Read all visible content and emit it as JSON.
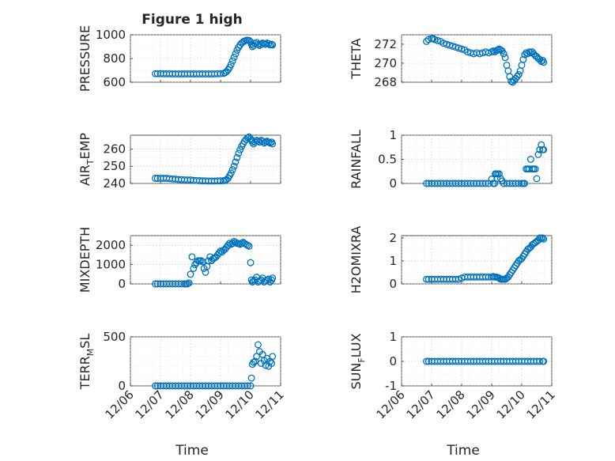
{
  "figure": {
    "title": "Figure 1 high",
    "xlabel": "Time",
    "x_ticks": [
      "12/06",
      "12/07",
      "12/08",
      "12/09",
      "12/10",
      "12/11"
    ],
    "x_tick_values": [
      6,
      7,
      8,
      9,
      10,
      11
    ],
    "x_range": [
      6,
      11
    ]
  },
  "chart_data": [
    {
      "type": "scatter",
      "ylabel": "PRESSURE",
      "ylim": [
        600,
        1000
      ],
      "yticks": [
        "600",
        "800",
        "1000"
      ],
      "ytick_values": [
        600,
        800,
        1000
      ],
      "ygrid_minor": [
        700,
        900
      ],
      "x": [
        6.83,
        6.9,
        7.0,
        7.1,
        7.2,
        7.3,
        7.4,
        7.5,
        7.6,
        7.7,
        7.8,
        7.9,
        8.0,
        8.1,
        8.2,
        8.3,
        8.4,
        8.5,
        8.6,
        8.7,
        8.8,
        8.9,
        9.0,
        9.1,
        9.15,
        9.2,
        9.25,
        9.3,
        9.35,
        9.4,
        9.45,
        9.5,
        9.55,
        9.6,
        9.65,
        9.7,
        9.75,
        9.8,
        9.85,
        9.9,
        9.95,
        10.0,
        10.03,
        10.06,
        10.1,
        10.15,
        10.2,
        10.25,
        10.3,
        10.35,
        10.4,
        10.45,
        10.5,
        10.55,
        10.6,
        10.65,
        10.7,
        10.73
      ],
      "y": [
        672,
        672,
        672,
        671,
        671,
        671,
        670,
        670,
        670,
        670,
        670,
        670,
        670,
        670,
        670,
        670,
        670,
        670,
        670,
        670,
        670,
        671,
        672,
        674,
        680,
        690,
        705,
        725,
        750,
        780,
        810,
        840,
        870,
        895,
        915,
        930,
        940,
        948,
        953,
        955,
        952,
        940,
        920,
        900,
        910,
        925,
        935,
        920,
        910,
        920,
        930,
        925,
        920,
        930,
        925,
        915,
        920,
        915
      ]
    },
    {
      "type": "scatter",
      "ylabel": "THETA",
      "ylim": [
        268,
        273
      ],
      "yticks": [
        "268",
        "270",
        "272"
      ],
      "ytick_values": [
        268,
        270,
        272
      ],
      "ygrid_minor": [
        269,
        271,
        273
      ],
      "x": [
        6.83,
        6.9,
        7.0,
        7.05,
        7.1,
        7.2,
        7.3,
        7.4,
        7.5,
        7.6,
        7.7,
        7.8,
        7.9,
        8.0,
        8.1,
        8.2,
        8.3,
        8.4,
        8.5,
        8.6,
        8.7,
        8.8,
        8.9,
        9.0,
        9.05,
        9.1,
        9.15,
        9.2,
        9.25,
        9.3,
        9.35,
        9.4,
        9.45,
        9.5,
        9.55,
        9.6,
        9.65,
        9.7,
        9.75,
        9.8,
        9.85,
        9.9,
        9.95,
        10.0,
        10.05,
        10.1,
        10.15,
        10.2,
        10.25,
        10.3,
        10.35,
        10.4,
        10.45,
        10.5,
        10.55,
        10.6,
        10.65,
        10.7,
        10.73
      ],
      "y": [
        272.3,
        272.5,
        272.6,
        272.6,
        272.5,
        272.4,
        272.3,
        272.1,
        272.0,
        271.9,
        271.8,
        271.7,
        271.6,
        271.5,
        271.4,
        271.2,
        271.1,
        271.0,
        271.1,
        271.0,
        271.1,
        271.2,
        271.1,
        271.2,
        271.3,
        271.2,
        271.3,
        271.4,
        271.5,
        271.4,
        271.3,
        271.0,
        270.6,
        269.8,
        269.2,
        268.6,
        268.1,
        268.0,
        268.2,
        268.4,
        268.6,
        268.8,
        269.2,
        269.8,
        270.4,
        270.9,
        271.1,
        271.0,
        271.2,
        271.1,
        271.2,
        271.0,
        270.8,
        270.7,
        270.5,
        270.4,
        270.2,
        270.3,
        270.1
      ]
    },
    {
      "type": "scatter",
      "ylabel": "AIR_TEMP",
      "ylim": [
        240,
        268
      ],
      "yticks": [
        "240",
        "250",
        "260"
      ],
      "ytick_values": [
        240,
        250,
        260
      ],
      "ygrid_minor": [
        245,
        255,
        265
      ],
      "x": [
        6.83,
        6.9,
        7.0,
        7.1,
        7.2,
        7.3,
        7.4,
        7.5,
        7.6,
        7.7,
        7.8,
        7.9,
        8.0,
        8.1,
        8.2,
        8.3,
        8.4,
        8.5,
        8.6,
        8.7,
        8.8,
        8.9,
        9.0,
        9.1,
        9.15,
        9.2,
        9.25,
        9.3,
        9.35,
        9.4,
        9.45,
        9.5,
        9.55,
        9.6,
        9.65,
        9.7,
        9.75,
        9.8,
        9.85,
        9.9,
        9.95,
        10.0,
        10.03,
        10.06,
        10.1,
        10.15,
        10.2,
        10.25,
        10.3,
        10.35,
        10.4,
        10.45,
        10.5,
        10.55,
        10.6,
        10.65,
        10.7,
        10.73
      ],
      "y": [
        243,
        243,
        243,
        243,
        243,
        242.8,
        242.6,
        242.5,
        242.3,
        242.2,
        242.1,
        242.0,
        242.0,
        241.8,
        241.7,
        241.6,
        241.5,
        241.5,
        241.4,
        241.4,
        241.4,
        241.5,
        241.5,
        241.6,
        241.8,
        242.2,
        243,
        244.5,
        246,
        248,
        250,
        252.5,
        255,
        257.5,
        259.5,
        261.5,
        263,
        264.5,
        265.5,
        266.5,
        267,
        266,
        265,
        264,
        263,
        264,
        265,
        264.5,
        264,
        265,
        264.5,
        263.5,
        264,
        264.5,
        264,
        263.5,
        264,
        263
      ]
    },
    {
      "type": "scatter",
      "ylabel": "RAINFALL",
      "ylim": [
        0,
        1
      ],
      "yticks": [
        "0",
        "0.5",
        "1"
      ],
      "ytick_values": [
        0,
        0.5,
        1
      ],
      "ygrid_minor": [
        0.25,
        0.75
      ],
      "x": [
        6.83,
        6.9,
        7.0,
        7.1,
        7.2,
        7.3,
        7.4,
        7.5,
        7.6,
        7.7,
        7.8,
        7.9,
        8.0,
        8.1,
        8.2,
        8.3,
        8.4,
        8.5,
        8.6,
        8.7,
        8.8,
        8.9,
        9.0,
        9.05,
        9.1,
        9.12,
        9.15,
        9.18,
        9.2,
        9.25,
        9.3,
        9.35,
        9.4,
        9.5,
        9.6,
        9.7,
        9.8,
        9.9,
        10.0,
        10.05,
        10.1,
        10.15,
        10.2,
        10.25,
        10.3,
        10.35,
        10.4,
        10.45,
        10.5,
        10.55,
        10.6,
        10.65,
        10.7,
        10.73
      ],
      "y": [
        0,
        0,
        0,
        0,
        0,
        0,
        0,
        0,
        0,
        0,
        0,
        0,
        0,
        0,
        0,
        0,
        0,
        0,
        0,
        0,
        0,
        0,
        0.09,
        0,
        0,
        0.2,
        0.2,
        0.1,
        0.2,
        0.2,
        0.1,
        0.05,
        0,
        0,
        0,
        0,
        0,
        0,
        0,
        0,
        0,
        0.3,
        0.3,
        0.3,
        0.5,
        0.3,
        0.3,
        0.3,
        0.1,
        0.6,
        0.7,
        0.8,
        0.7,
        0.7
      ]
    },
    {
      "type": "scatter",
      "ylabel": "MIXDEPTH",
      "ylim": [
        0,
        2500
      ],
      "yticks": [
        "0",
        "1000",
        "2000"
      ],
      "ytick_values": [
        0,
        1000,
        2000
      ],
      "ygrid_minor": [
        500,
        1500,
        2500
      ],
      "x": [
        6.83,
        6.9,
        7.0,
        7.1,
        7.2,
        7.3,
        7.4,
        7.5,
        7.6,
        7.7,
        7.8,
        7.85,
        7.9,
        7.95,
        8.0,
        8.05,
        8.1,
        8.15,
        8.2,
        8.25,
        8.3,
        8.35,
        8.4,
        8.45,
        8.5,
        8.55,
        8.6,
        8.65,
        8.7,
        8.75,
        8.8,
        8.85,
        8.9,
        8.95,
        9.0,
        9.05,
        9.1,
        9.15,
        9.2,
        9.25,
        9.3,
        9.35,
        9.4,
        9.45,
        9.5,
        9.55,
        9.6,
        9.65,
        9.7,
        9.75,
        9.8,
        9.85,
        9.9,
        9.95,
        10.0,
        10.03,
        10.06,
        10.1,
        10.15,
        10.2,
        10.25,
        10.3,
        10.35,
        10.4,
        10.45,
        10.5,
        10.55,
        10.6,
        10.65,
        10.7,
        10.73
      ],
      "y": [
        0,
        0,
        0,
        0,
        0,
        0,
        0,
        0,
        0,
        0,
        0,
        0,
        0,
        50,
        500,
        1400,
        800,
        1000,
        1100,
        1200,
        1200,
        1200,
        1150,
        800,
        600,
        900,
        1200,
        1400,
        1200,
        1300,
        1350,
        1400,
        1500,
        1600,
        1700,
        1650,
        1750,
        1800,
        1900,
        2000,
        2100,
        2050,
        2100,
        2200,
        2150,
        2100,
        2100,
        2050,
        2100,
        2150,
        2100,
        2050,
        2000,
        1950,
        1100,
        200,
        100,
        150,
        200,
        350,
        100,
        150,
        200,
        300,
        100,
        150,
        200,
        250,
        100,
        200,
        300
      ]
    },
    {
      "type": "scatter",
      "ylabel": "H2OMIXRA",
      "ylim": [
        0,
        2.1
      ],
      "yticks": [
        "0",
        "1",
        "2"
      ],
      "ytick_values": [
        0,
        1,
        2
      ],
      "ygrid_minor": [
        0.5,
        1.5
      ],
      "x": [
        6.83,
        6.9,
        7.0,
        7.1,
        7.2,
        7.3,
        7.4,
        7.5,
        7.6,
        7.7,
        7.8,
        7.9,
        8.0,
        8.1,
        8.2,
        8.3,
        8.4,
        8.5,
        8.6,
        8.7,
        8.8,
        8.9,
        9.0,
        9.05,
        9.1,
        9.15,
        9.2,
        9.25,
        9.3,
        9.35,
        9.4,
        9.45,
        9.5,
        9.55,
        9.6,
        9.65,
        9.7,
        9.75,
        9.8,
        9.85,
        9.9,
        9.95,
        10.0,
        10.05,
        10.1,
        10.15,
        10.2,
        10.25,
        10.3,
        10.35,
        10.4,
        10.45,
        10.5,
        10.55,
        10.6,
        10.65,
        10.7,
        10.73
      ],
      "y": [
        0.2,
        0.2,
        0.2,
        0.2,
        0.2,
        0.2,
        0.2,
        0.2,
        0.2,
        0.2,
        0.2,
        0.2,
        0.25,
        0.3,
        0.3,
        0.3,
        0.3,
        0.3,
        0.3,
        0.3,
        0.3,
        0.3,
        0.3,
        0.32,
        0.3,
        0.3,
        0.28,
        0.25,
        0.2,
        0.2,
        0.2,
        0.2,
        0.25,
        0.3,
        0.4,
        0.5,
        0.6,
        0.7,
        0.8,
        0.9,
        1.0,
        1.05,
        1.1,
        1.2,
        1.3,
        1.4,
        1.5,
        1.55,
        1.6,
        1.7,
        1.75,
        1.8,
        1.85,
        1.9,
        2.0,
        2.0,
        2.0,
        1.95
      ]
    },
    {
      "type": "scatter",
      "ylabel": "TERR_MSL",
      "ylim": [
        0,
        500
      ],
      "yticks": [
        "0",
        "500"
      ],
      "ytick_values": [
        0,
        500
      ],
      "ygrid_minor": [
        100,
        200,
        300,
        400
      ],
      "x": [
        6.83,
        6.9,
        7.0,
        7.1,
        7.2,
        7.3,
        7.4,
        7.5,
        7.6,
        7.7,
        7.8,
        7.9,
        8.0,
        8.1,
        8.2,
        8.3,
        8.4,
        8.5,
        8.6,
        8.7,
        8.8,
        8.9,
        9.0,
        9.1,
        9.2,
        9.3,
        9.4,
        9.5,
        9.6,
        9.7,
        9.8,
        9.9,
        10.0,
        10.03,
        10.06,
        10.1,
        10.15,
        10.2,
        10.25,
        10.3,
        10.35,
        10.4,
        10.45,
        10.5,
        10.55,
        10.6,
        10.65,
        10.7,
        10.73
      ],
      "y": [
        0,
        0,
        0,
        0,
        0,
        0,
        0,
        0,
        0,
        0,
        0,
        0,
        0,
        0,
        0,
        0,
        0,
        0,
        0,
        0,
        0,
        0,
        0,
        0,
        0,
        0,
        0,
        0,
        0,
        0,
        0,
        0,
        0,
        80,
        220,
        240,
        250,
        300,
        420,
        350,
        230,
        320,
        260,
        210,
        280,
        200,
        250,
        230,
        300
      ]
    },
    {
      "type": "scatter",
      "ylabel": "SUN_FLUX",
      "ylim": [
        -1,
        1
      ],
      "yticks": [
        "-1",
        "0",
        "1"
      ],
      "ytick_values": [
        -1,
        0,
        1
      ],
      "ygrid_minor": [
        -0.5,
        0.5
      ],
      "x": [
        6.83,
        6.9,
        7.0,
        7.1,
        7.2,
        7.3,
        7.4,
        7.5,
        7.6,
        7.7,
        7.8,
        7.9,
        8.0,
        8.1,
        8.2,
        8.3,
        8.4,
        8.5,
        8.6,
        8.7,
        8.8,
        8.9,
        9.0,
        9.1,
        9.2,
        9.3,
        9.4,
        9.5,
        9.6,
        9.7,
        9.8,
        9.9,
        10.0,
        10.1,
        10.2,
        10.3,
        10.4,
        10.5,
        10.6,
        10.7,
        10.73
      ],
      "y": [
        0,
        0,
        0,
        0,
        0,
        0,
        0,
        0,
        0,
        0,
        0,
        0,
        0,
        0,
        0,
        0,
        0,
        0,
        0,
        0,
        0,
        0,
        0,
        0,
        0,
        0,
        0,
        0,
        0,
        0,
        0,
        0,
        0,
        0,
        0,
        0,
        0,
        0,
        0,
        0,
        0
      ]
    }
  ]
}
